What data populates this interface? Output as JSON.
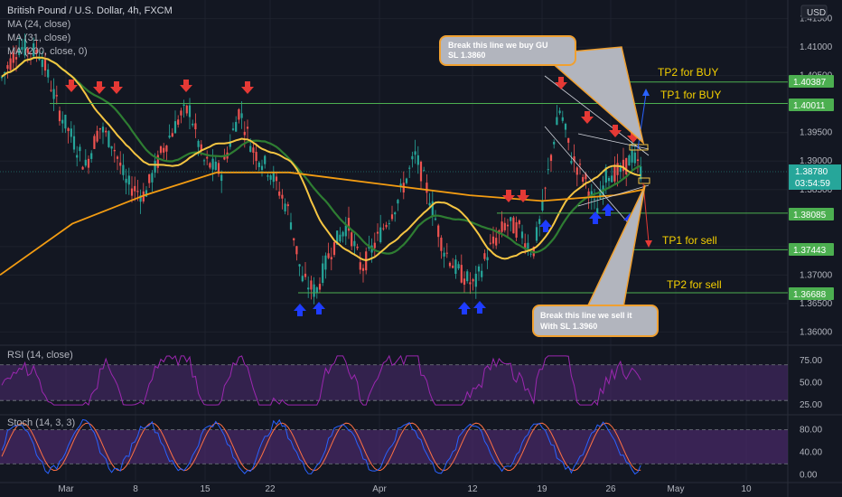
{
  "header": {
    "symbol_title": "British Pound / U.S. Dollar, 4h, FXCM",
    "currency": "USD",
    "indicators": [
      "MA (24, close)",
      "MA (31, close)",
      "MA (200, close, 0)"
    ]
  },
  "colors": {
    "background": "#131722",
    "grid": "#1e222d",
    "up_candle": "#26a69a",
    "down_candle": "#ef5350",
    "ma24": "#f5c542",
    "ma31": "#2e7d32",
    "ma200": "#f39c12",
    "level_line": "#4caf50",
    "arrow_down": "#e53935",
    "arrow_up": "#1e3cff",
    "annotation_box": "#b2b5be",
    "annotation_border": "#f0a030",
    "label_text_yellow": "#f5d000",
    "panel_purple": "#4a2a6a",
    "rsi_line": "#9c27b0",
    "stoch_k": "#2962ff",
    "stoch_d": "#ff7043"
  },
  "chart_data": {
    "type": "candlestick",
    "title": "British Pound / U.S. Dollar, 4h, FXCM",
    "xlabel": "",
    "ylabel": "USD",
    "x_tick_labels": [
      "Mar",
      "8",
      "15",
      "22",
      "Apr",
      "12",
      "19",
      "26",
      "May",
      "10"
    ],
    "y_tick_labels": [
      "1.41500",
      "1.41000",
      "1.40500",
      "1.39500",
      "1.39000",
      "1.38500",
      "1.37500",
      "1.37000",
      "1.36500",
      "1.36000"
    ],
    "ylim": [
      1.358,
      1.417
    ],
    "current_price": "1.38780",
    "countdown": "03:54:59",
    "levels": [
      {
        "label": "TP2 for BUY",
        "price": "1.40387"
      },
      {
        "label": "TP1 for BUY",
        "price": "1.40011"
      },
      {
        "label": "",
        "price": "1.38085"
      },
      {
        "label": "TP1 for sell",
        "price": "1.37443"
      },
      {
        "label": "TP2 for sell",
        "price": "1.36688"
      }
    ],
    "annotations": [
      {
        "text_line1": "Break this line we buy GU",
        "text_line2": "SL 1.3860"
      },
      {
        "text_line1": "Break this line we sell it",
        "text_line2": "With SL 1.3960"
      }
    ],
    "rsi": {
      "label": "RSI (14, close)",
      "y_tick_labels": [
        "75.00",
        "50.00",
        "25.00"
      ],
      "ylim": [
        15,
        90
      ]
    },
    "stoch": {
      "label": "Stoch (14, 3, 3)",
      "y_tick_labels": [
        "80.00",
        "40.00",
        "0.00"
      ],
      "ylim": [
        -10,
        105
      ]
    }
  }
}
